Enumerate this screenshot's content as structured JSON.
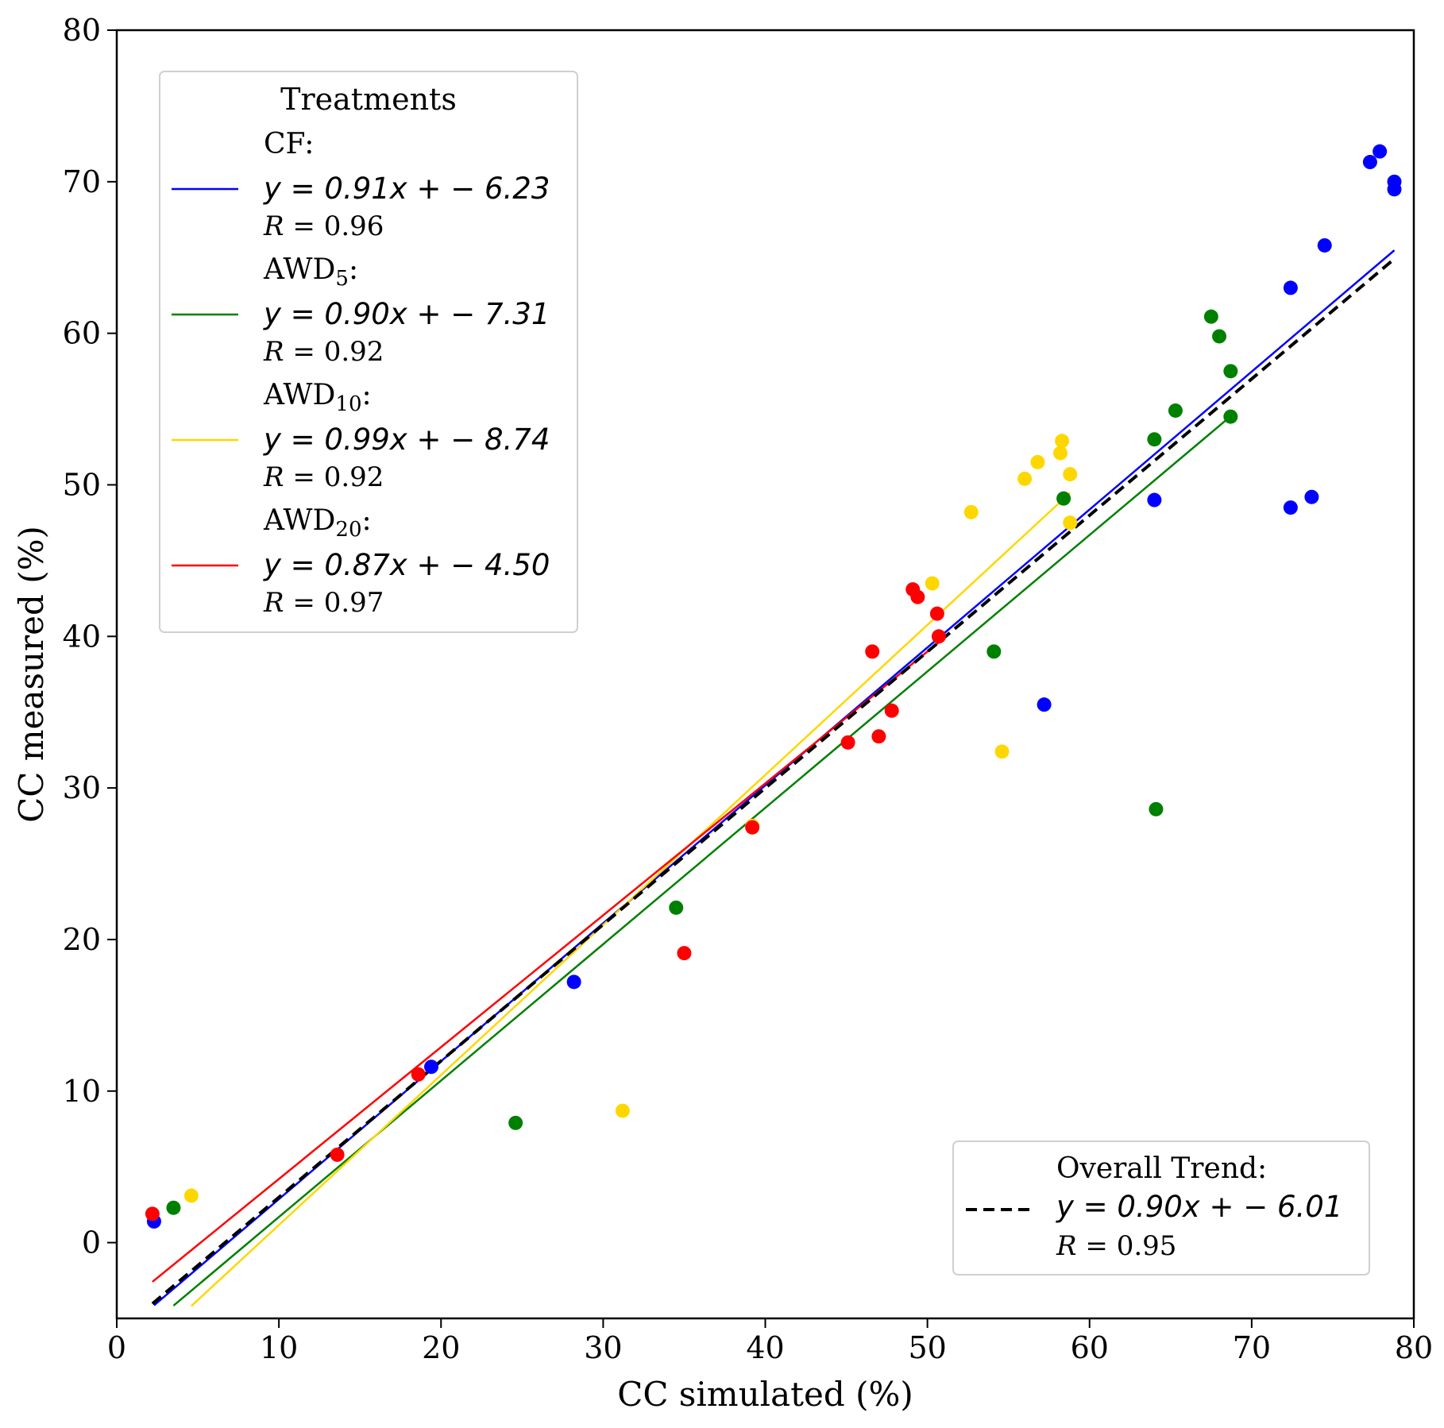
{
  "chart_data": {
    "type": "scatter",
    "xlabel": "CC simulated (%)",
    "ylabel": "CC measured (%)",
    "xlim": [
      0,
      80
    ],
    "ylim": [
      -5,
      80
    ],
    "xticks": [
      0,
      10,
      20,
      30,
      40,
      50,
      60,
      70,
      80
    ],
    "yticks": [
      0,
      10,
      20,
      30,
      40,
      50,
      60,
      70,
      80
    ],
    "legend_title": "Treatments",
    "legend_position": "upper-left",
    "series": [
      {
        "name": "CF",
        "label_base": "CF",
        "label_sub": "",
        "color": "#0000ff",
        "slope": 0.91,
        "intercept": -6.23,
        "equation": "y = 0.91x + − 6.23",
        "r_value": "0.96",
        "x_range": [
          2.3,
          78.8
        ],
        "points": [
          [
            2.3,
            1.4
          ],
          [
            19.4,
            11.6
          ],
          [
            28.2,
            17.2
          ],
          [
            57.2,
            35.5
          ],
          [
            64.0,
            49.0
          ],
          [
            72.4,
            48.5
          ],
          [
            73.7,
            49.2
          ],
          [
            72.4,
            63.0
          ],
          [
            74.5,
            65.8
          ],
          [
            77.3,
            71.3
          ],
          [
            77.9,
            72.0
          ],
          [
            78.8,
            70.0
          ],
          [
            78.8,
            69.5
          ]
        ]
      },
      {
        "name": "AWD5",
        "label_base": "AWD",
        "label_sub": "5",
        "color": "#008000",
        "slope": 0.9,
        "intercept": -7.31,
        "equation": "y = 0.90x + − 7.31",
        "r_value": "0.92",
        "x_range": [
          3.5,
          68.7
        ],
        "points": [
          [
            3.5,
            2.3
          ],
          [
            24.6,
            7.9
          ],
          [
            34.5,
            22.1
          ],
          [
            54.1,
            39.0
          ],
          [
            58.4,
            49.1
          ],
          [
            64.0,
            53.0
          ],
          [
            64.1,
            28.6
          ],
          [
            65.3,
            54.9
          ],
          [
            67.5,
            61.1
          ],
          [
            68.0,
            59.8
          ],
          [
            68.7,
            57.5
          ],
          [
            68.7,
            54.5
          ]
        ]
      },
      {
        "name": "AWD10",
        "label_base": "AWD",
        "label_sub": "10",
        "color": "#ffd700",
        "slope": 0.99,
        "intercept": -8.74,
        "equation": "y = 0.99x + − 8.74",
        "r_value": "0.92",
        "x_range": [
          4.6,
          58.8
        ],
        "points": [
          [
            4.6,
            3.1
          ],
          [
            31.2,
            8.7
          ],
          [
            39.2,
            27.5
          ],
          [
            50.3,
            43.5
          ],
          [
            52.7,
            48.2
          ],
          [
            54.6,
            32.4
          ],
          [
            56.0,
            50.4
          ],
          [
            56.8,
            51.5
          ],
          [
            58.2,
            52.1
          ],
          [
            58.3,
            52.9
          ],
          [
            58.8,
            50.7
          ],
          [
            58.8,
            47.5
          ]
        ]
      },
      {
        "name": "AWD20",
        "label_base": "AWD",
        "label_sub": "20",
        "color": "#ff0000",
        "slope": 0.87,
        "intercept": -4.5,
        "equation": "y = 0.87x + − 4.50",
        "r_value": "0.97",
        "x_range": [
          2.2,
          50.7
        ],
        "points": [
          [
            2.2,
            1.9
          ],
          [
            13.6,
            5.8
          ],
          [
            18.6,
            11.1
          ],
          [
            35.0,
            19.1
          ],
          [
            39.2,
            27.4
          ],
          [
            45.1,
            33.0
          ],
          [
            46.6,
            39.0
          ],
          [
            47.0,
            33.4
          ],
          [
            47.8,
            35.1
          ],
          [
            49.1,
            43.1
          ],
          [
            49.4,
            42.6
          ],
          [
            50.6,
            41.5
          ],
          [
            50.7,
            40.0
          ]
        ]
      }
    ],
    "overall": {
      "title": "Overall Trend:",
      "slope": 0.9,
      "intercept": -6.01,
      "equation": "y = 0.90x + − 6.01",
      "r_value": "0.95",
      "color": "#000000",
      "x_range": [
        2.2,
        78.8
      ],
      "legend_position": "lower-right"
    }
  }
}
